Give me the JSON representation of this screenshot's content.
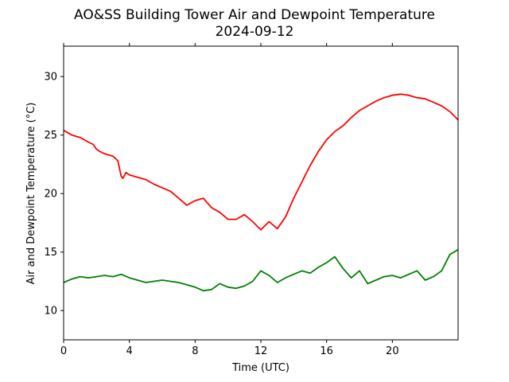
{
  "chart_data": {
    "type": "line",
    "title": "AO&SS Building Tower Air and Dewpoint Temperature",
    "subtitle": "2024-09-12",
    "xlabel": "Time (UTC)",
    "ylabel": "Air and Dewpoint Temperature (°C)",
    "xlim": [
      0,
      24
    ],
    "ylim": [
      7.5,
      32.6
    ],
    "xticks": [
      0,
      4,
      8,
      12,
      16,
      20
    ],
    "yticks": [
      10,
      15,
      20,
      25,
      30
    ],
    "grid": false,
    "legend": "none",
    "series": [
      {
        "color": "#ff0000",
        "x": [
          0,
          0.5,
          1,
          1.5,
          1.8,
          2,
          2.2,
          2.5,
          3,
          3.3,
          3.5,
          3.6,
          3.8,
          4,
          4.5,
          5,
          5.5,
          6,
          6.5,
          7,
          7.5,
          8,
          8.5,
          9,
          9.5,
          10,
          10.5,
          11,
          11.5,
          12,
          12.5,
          13,
          13.5,
          14,
          14.5,
          15,
          15.5,
          16,
          16.5,
          17,
          17.5,
          18,
          18.5,
          19,
          19.5,
          20,
          20.5,
          21,
          21.5,
          22,
          22.5,
          23,
          23.5,
          24
        ],
        "y": [
          25.4,
          25.0,
          24.8,
          24.4,
          24.2,
          23.8,
          23.6,
          23.4,
          23.2,
          22.8,
          21.5,
          21.3,
          21.8,
          21.6,
          21.4,
          21.2,
          20.8,
          20.5,
          20.2,
          19.6,
          19.0,
          19.4,
          19.6,
          18.8,
          18.4,
          17.8,
          17.8,
          18.2,
          17.6,
          16.9,
          17.6,
          17.0,
          18.0,
          19.6,
          21.0,
          22.4,
          23.6,
          24.6,
          25.3,
          25.8,
          26.5,
          27.1,
          27.5,
          27.9,
          28.2,
          28.4,
          28.5,
          28.4,
          28.2,
          28.1,
          27.8,
          27.5,
          27.0,
          26.3
        ]
      },
      {
        "color": "#008000",
        "x": [
          0,
          0.5,
          1,
          1.5,
          2,
          2.5,
          3,
          3.5,
          4,
          4.5,
          5,
          5.5,
          6,
          6.5,
          7,
          7.5,
          8,
          8.5,
          9,
          9.5,
          10,
          10.5,
          11,
          11.5,
          12,
          12.5,
          13,
          13.5,
          14,
          14.5,
          15,
          15.5,
          16,
          16.5,
          17,
          17.5,
          18,
          18.5,
          19,
          19.5,
          20,
          20.5,
          21,
          21.5,
          22,
          22.5,
          23,
          23.5,
          24
        ],
        "y": [
          12.4,
          12.7,
          12.9,
          12.8,
          12.9,
          13.0,
          12.9,
          13.1,
          12.8,
          12.6,
          12.4,
          12.5,
          12.6,
          12.5,
          12.4,
          12.2,
          12.0,
          11.7,
          11.8,
          12.3,
          12.0,
          11.9,
          12.1,
          12.5,
          13.4,
          13.0,
          12.4,
          12.8,
          13.1,
          13.4,
          13.2,
          13.7,
          14.1,
          14.6,
          13.6,
          12.8,
          13.4,
          12.3,
          12.6,
          12.9,
          13.0,
          12.8,
          13.1,
          13.4,
          12.6,
          12.9,
          13.4,
          14.8,
          15.2
        ]
      }
    ]
  }
}
